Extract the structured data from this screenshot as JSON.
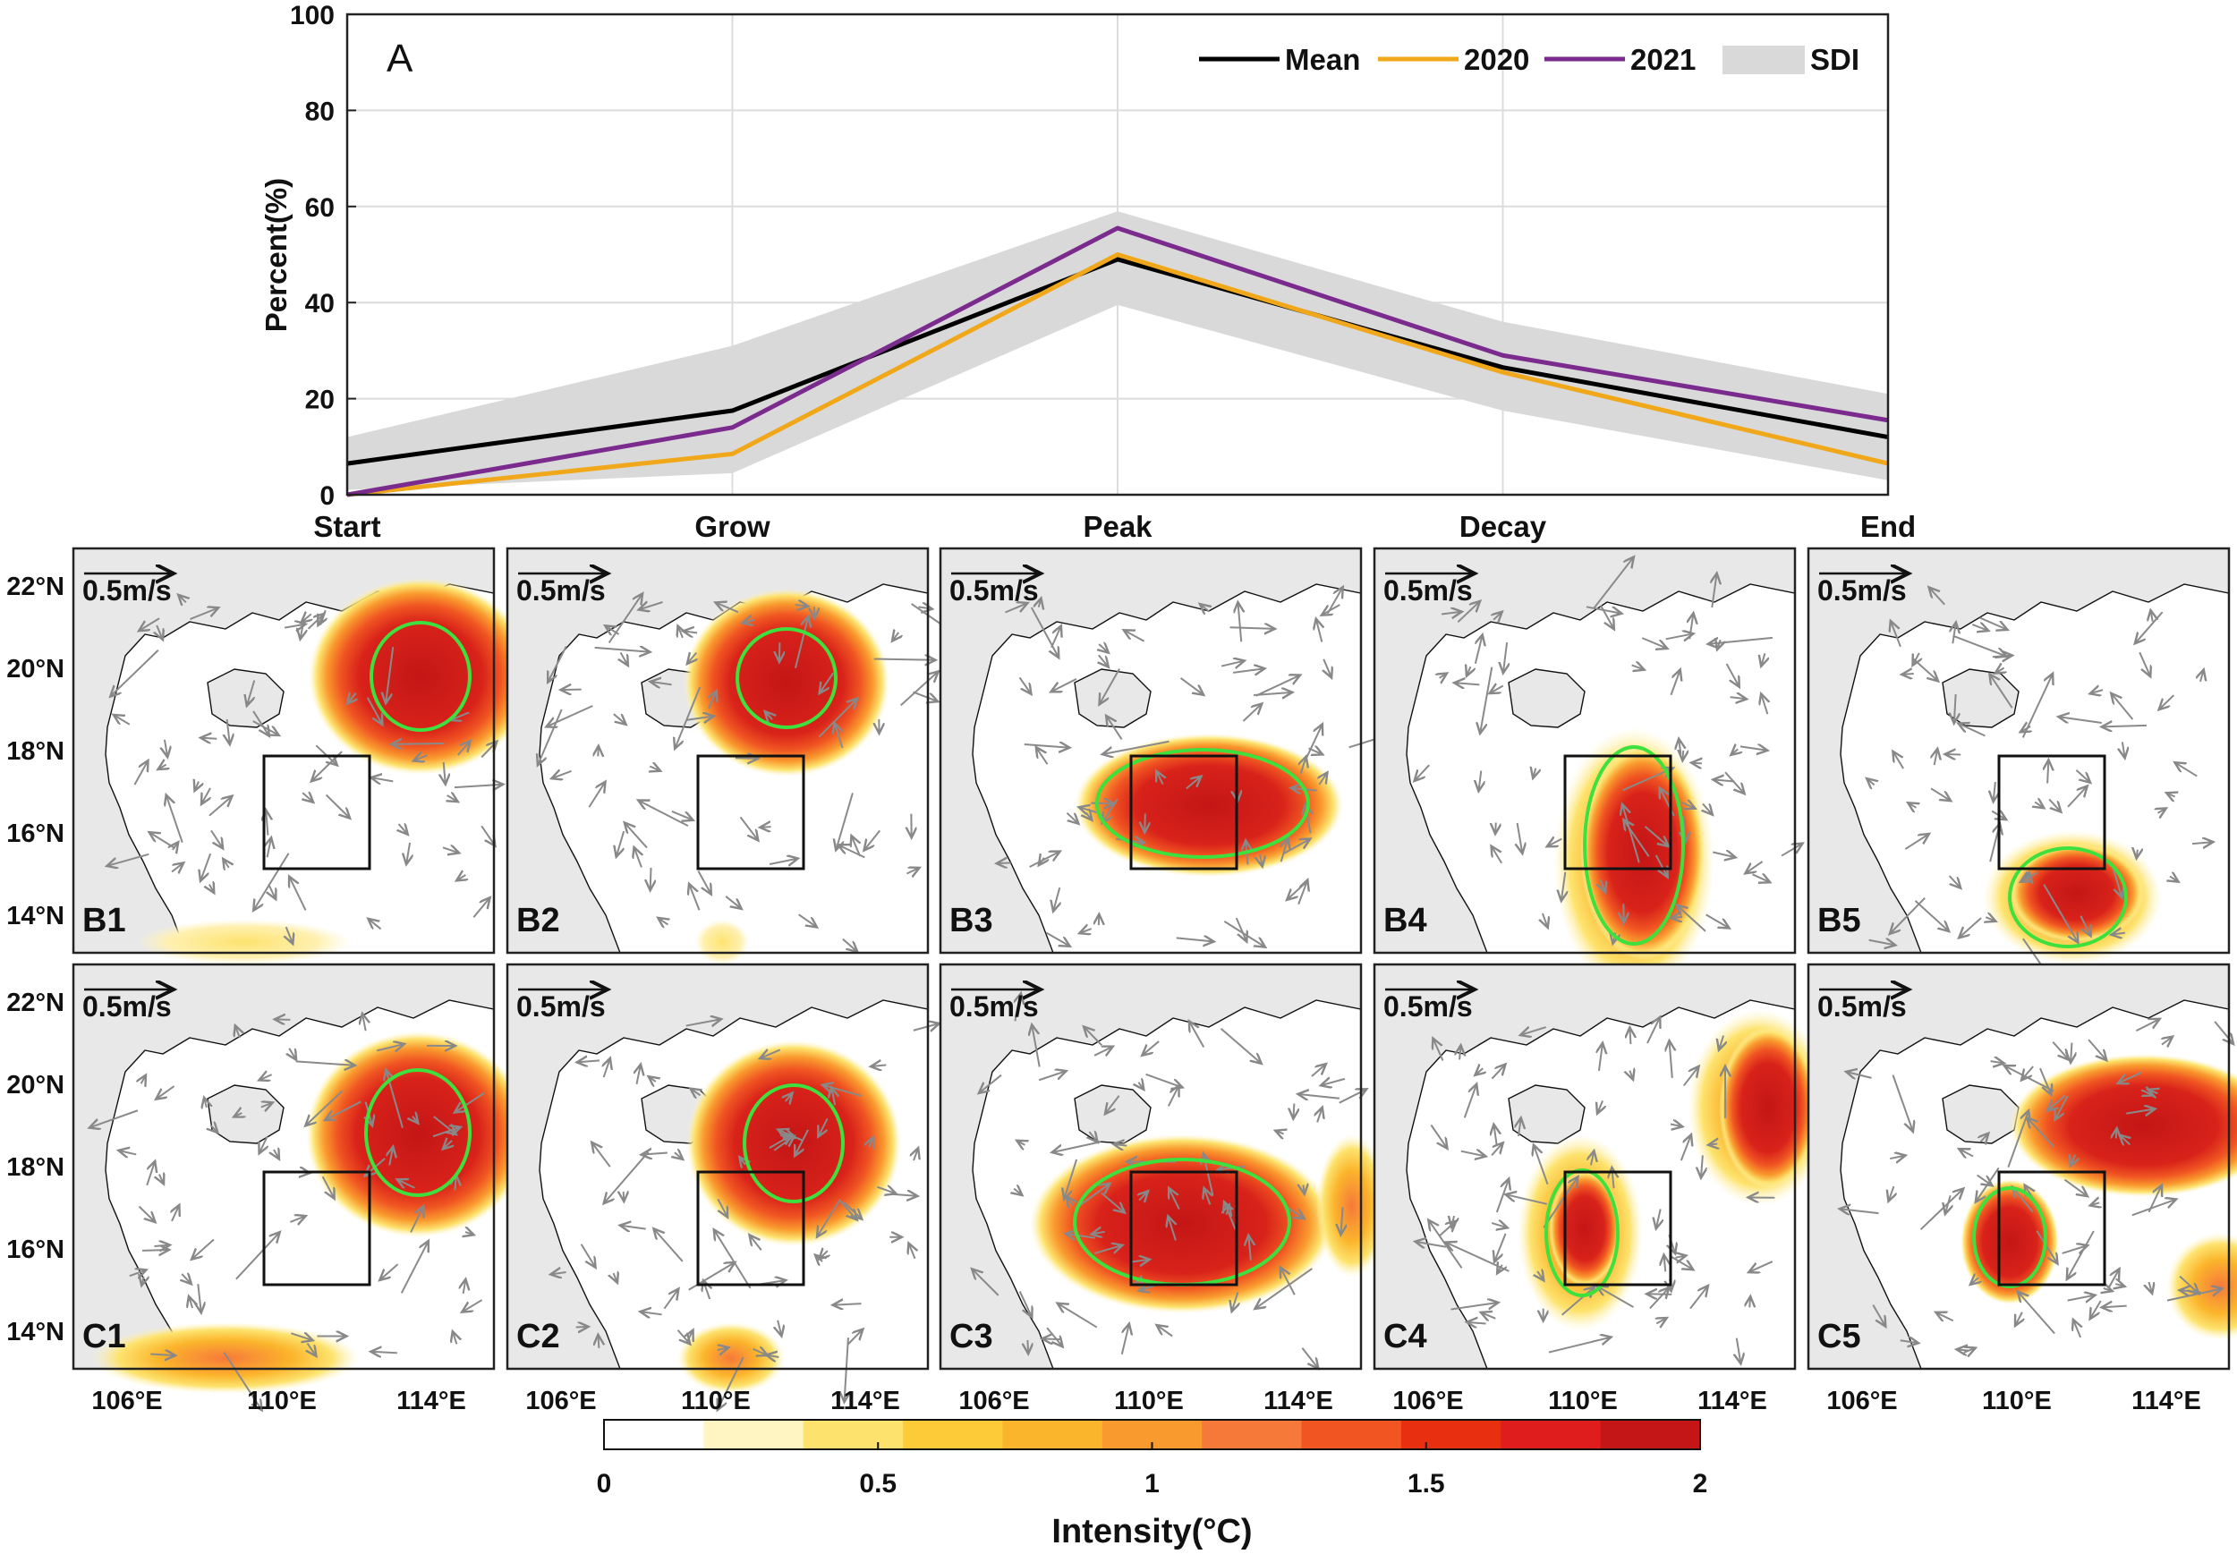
{
  "chart_data": [
    {
      "type": "line",
      "panel_label": "A",
      "ylabel": "Percent(%)",
      "ylim": [
        0,
        100
      ],
      "yticks": [
        0,
        20,
        40,
        60,
        80,
        100
      ],
      "categories": [
        "Start",
        "Grow",
        "Peak",
        "Decay",
        "End"
      ],
      "grid": true,
      "legend_position": "top-right",
      "series": [
        {
          "name": "Mean",
          "color": "#000000",
          "values": [
            6.5,
            17.5,
            49,
            26.5,
            12
          ]
        },
        {
          "name": "2020",
          "color": "#f0a81a",
          "values": [
            0,
            8.5,
            50,
            25.5,
            6.5
          ]
        },
        {
          "name": "2021",
          "color": "#7b2a8e",
          "values": [
            0,
            14,
            55.5,
            29,
            15.5
          ]
        }
      ],
      "band": {
        "name": "SDI",
        "color": "#d9d9d9",
        "upper": [
          12,
          31,
          59,
          36,
          21
        ],
        "lower": [
          1,
          4.5,
          39.5,
          17.5,
          3
        ]
      }
    },
    {
      "type": "heatmap",
      "description_label": "Intensity(°C)",
      "panels": [
        "B1",
        "B2",
        "B3",
        "B4",
        "B5",
        "C1",
        "C2",
        "C3",
        "C4",
        "C5"
      ],
      "lat_ticks": [
        "22°N",
        "20°N",
        "18°N",
        "16°N",
        "14°N"
      ],
      "lon_ticks": [
        "106°E",
        "110°E",
        "114°E"
      ],
      "scale_arrow_label": "0.5m/s",
      "colorbar": {
        "label": "Intensity(°C)",
        "ticks": [
          "0",
          "0.5",
          "1",
          "1.5",
          "2"
        ],
        "colors": [
          "#ffffff",
          "#fff5c2",
          "#fde36e",
          "#fccb37",
          "#fbb52c",
          "#f99a2e",
          "#f6793a",
          "#f05522",
          "#e83010",
          "#df1d1d",
          "#c41616"
        ]
      }
    }
  ]
}
